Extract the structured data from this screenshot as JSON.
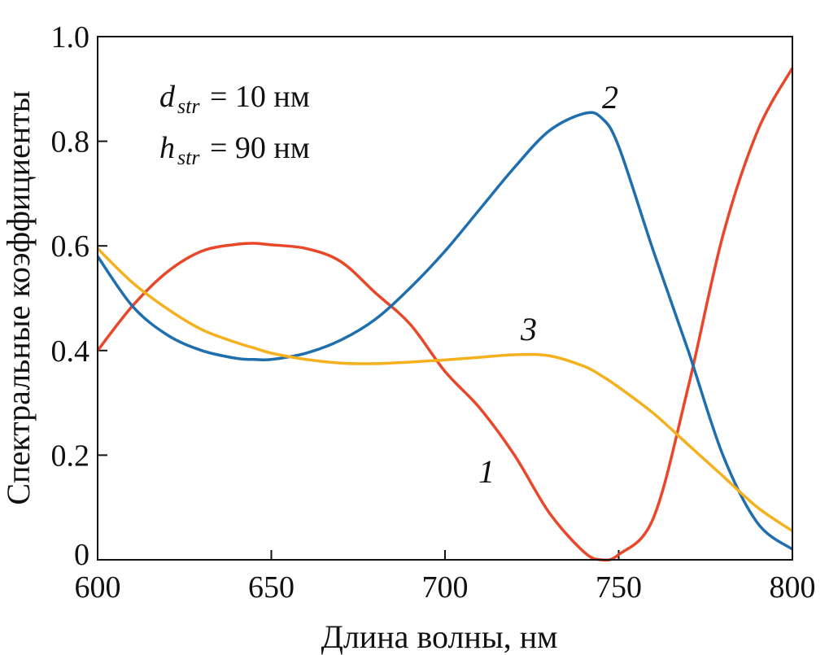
{
  "chart_data": {
    "type": "line",
    "title": "",
    "xlabel": "Длина волны, нм",
    "ylabel": "Спектральные коэффициенты",
    "xlim": [
      600,
      800
    ],
    "ylim": [
      0,
      1.0
    ],
    "xticks": [
      "600",
      "650",
      "700",
      "750",
      "800"
    ],
    "yticks": [
      "0",
      "0.2",
      "0.4",
      "0.6",
      "0.8",
      "1.0"
    ],
    "grid": false,
    "annotations": [
      {
        "var": "d",
        "sub": "str",
        "text": " = 10 нм"
      },
      {
        "var": "h",
        "sub": "str",
        "text": " = 90 нм"
      }
    ],
    "x": [
      600,
      610,
      620,
      630,
      640,
      645,
      650,
      660,
      670,
      680,
      690,
      700,
      710,
      720,
      730,
      740,
      745,
      750,
      760,
      770,
      780,
      790,
      800
    ],
    "series": [
      {
        "label": "1",
        "color": "#e8472a",
        "values": [
          0.4,
          0.485,
          0.55,
          0.59,
          0.603,
          0.605,
          0.602,
          0.595,
          0.57,
          0.51,
          0.45,
          0.36,
          0.29,
          0.2,
          0.09,
          0.015,
          0.0,
          0.01,
          0.08,
          0.33,
          0.62,
          0.82,
          0.94
        ]
      },
      {
        "label": "2",
        "color": "#1f6fae",
        "values": [
          0.58,
          0.485,
          0.43,
          0.4,
          0.385,
          0.383,
          0.383,
          0.395,
          0.42,
          0.46,
          0.52,
          0.59,
          0.67,
          0.75,
          0.82,
          0.853,
          0.845,
          0.79,
          0.59,
          0.4,
          0.2,
          0.07,
          0.02
        ]
      },
      {
        "label": "3",
        "color": "#f5b01e",
        "values": [
          0.595,
          0.53,
          0.48,
          0.44,
          0.415,
          0.405,
          0.395,
          0.383,
          0.376,
          0.375,
          0.378,
          0.382,
          0.387,
          0.392,
          0.39,
          0.37,
          0.352,
          0.33,
          0.28,
          0.22,
          0.16,
          0.1,
          0.055
        ]
      }
    ]
  }
}
